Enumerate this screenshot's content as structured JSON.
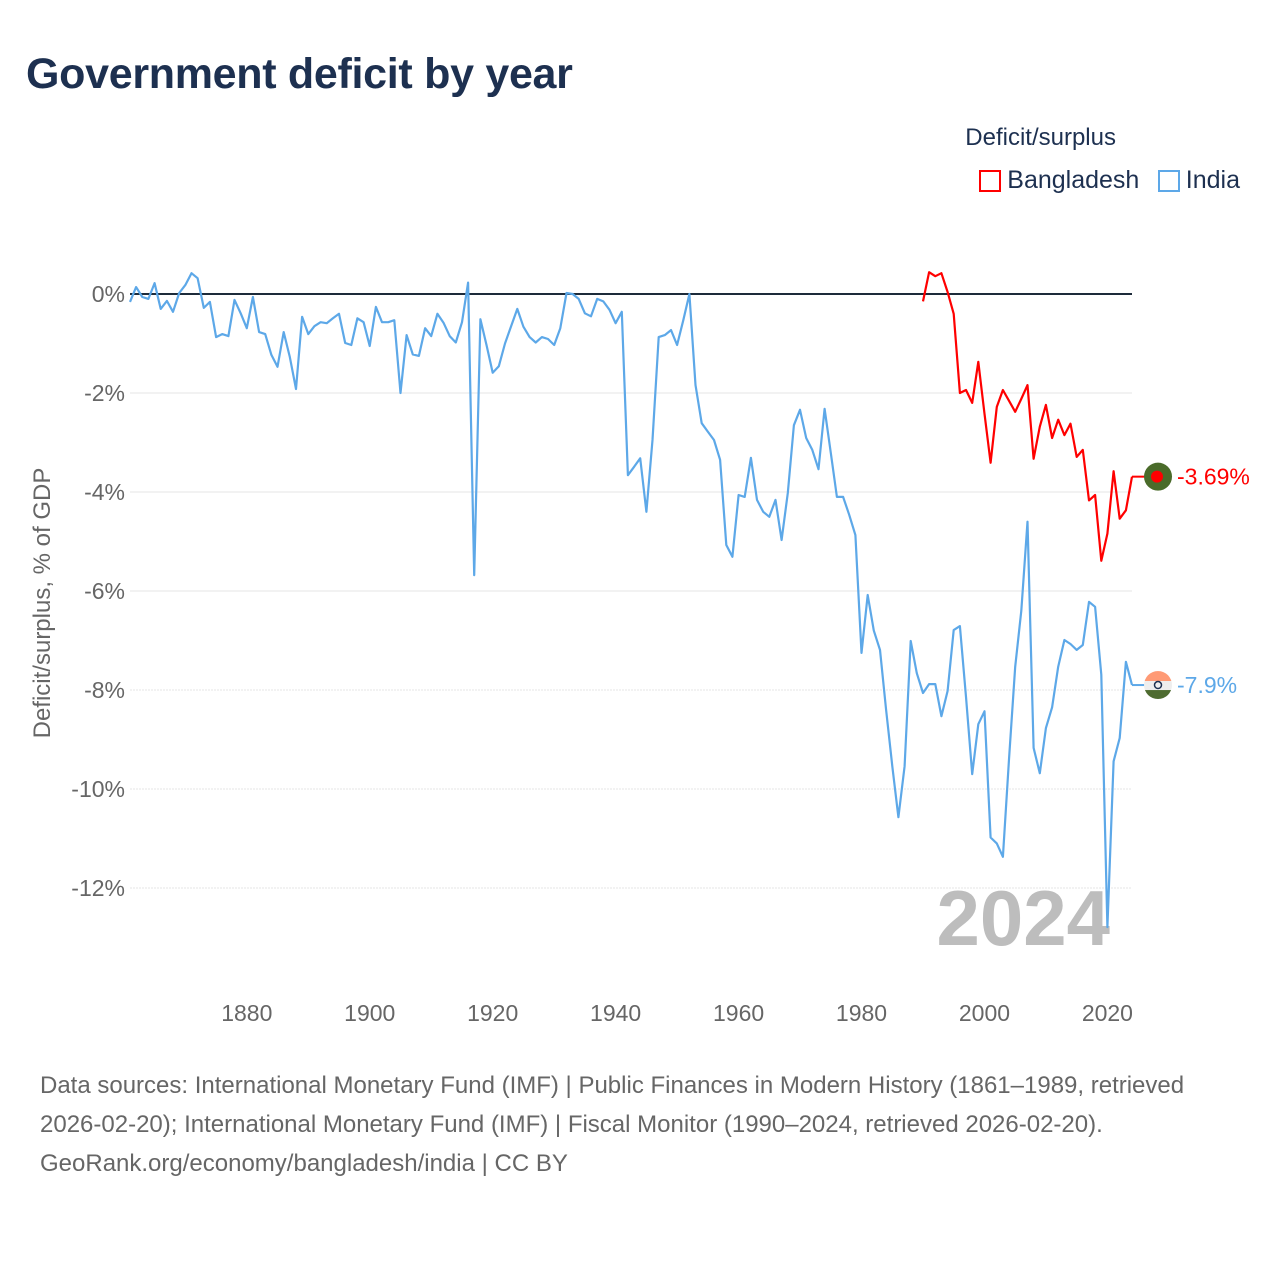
{
  "title": "Government deficit by year",
  "legend": {
    "title": "Deficit/surplus",
    "items": [
      {
        "label": "Bangladesh",
        "color": "#ff0000"
      },
      {
        "label": "India",
        "color": "#5da8e8"
      }
    ]
  },
  "footer": {
    "sources": "Data sources: International Monetary Fund (IMF) | Public Finances in Modern History (1861–1989, retrieved 2026-02-20); International Monetary Fund (IMF) | Fiscal Monitor (1990–2024, retrieved 2026-02-20).",
    "credit": "GeoRank.org/economy/bangladesh/india | CC BY"
  },
  "chart_data": {
    "type": "line",
    "title": "Government deficit by year",
    "xlabel": "",
    "ylabel": "Deficit/surplus, % of GDP",
    "xlim": [
      1861,
      2024
    ],
    "ylim": [
      -13,
      0.6
    ],
    "x_ticks": [
      1880,
      1900,
      1920,
      1940,
      1960,
      1980,
      2000,
      2020
    ],
    "y_ticks": [
      0,
      -2,
      -4,
      -6,
      -8,
      -10,
      -12
    ],
    "y_tick_labels": [
      "0%",
      "-2%",
      "-4%",
      "-6%",
      "-8%",
      "-10%",
      "-12%"
    ],
    "grid": true,
    "legend_position": "top-right",
    "year_watermark": "2024",
    "series": [
      {
        "name": "Bangladesh",
        "color": "#ff0000",
        "start_year": 1990,
        "end_label": "-3.69%",
        "flag": "bangladesh-flag",
        "values": [
          -0.15,
          0.44,
          0.36,
          0.42,
          0.04,
          -0.4,
          -2.0,
          -1.94,
          -2.2,
          -1.37,
          -2.42,
          -3.41,
          -2.28,
          -1.94,
          -2.16,
          -2.38,
          -2.12,
          -1.84,
          -3.33,
          -2.68,
          -2.24,
          -2.91,
          -2.54,
          -2.85,
          -2.62,
          -3.29,
          -3.15,
          -4.17,
          -4.06,
          -5.39,
          -4.84,
          -3.58,
          -4.54,
          -4.37,
          -3.69
        ]
      },
      {
        "name": "India",
        "color": "#5da8e8",
        "start_year": 1861,
        "end_label": "-7.9%",
        "flag": "india-flag",
        "values": [
          -0.16,
          0.14,
          -0.06,
          -0.1,
          0.22,
          -0.3,
          -0.14,
          -0.36,
          0.02,
          0.18,
          0.42,
          0.32,
          -0.28,
          -0.16,
          -0.87,
          -0.81,
          -0.85,
          -0.12,
          -0.39,
          -0.69,
          -0.06,
          -0.77,
          -0.81,
          -1.23,
          -1.47,
          -0.77,
          -1.27,
          -1.92,
          -0.46,
          -0.81,
          -0.65,
          -0.57,
          -0.59,
          -0.49,
          -0.4,
          -0.99,
          -1.03,
          -0.49,
          -0.57,
          -1.05,
          -0.26,
          -0.57,
          -0.57,
          -0.53,
          -2.0,
          -0.83,
          -1.22,
          -1.25,
          -0.69,
          -0.85,
          -0.4,
          -0.58,
          -0.85,
          -0.98,
          -0.57,
          0.23,
          -5.68,
          -0.51,
          -1.03,
          -1.59,
          -1.46,
          -1.0,
          -0.65,
          -0.3,
          -0.66,
          -0.87,
          -0.98,
          -0.87,
          -0.91,
          -1.03,
          -0.69,
          0.02,
          0,
          -0.1,
          -0.39,
          -0.45,
          -0.1,
          -0.15,
          -0.32,
          -0.59,
          -0.36,
          -3.66,
          -3.49,
          -3.32,
          -4.4,
          -2.95,
          -0.87,
          -0.83,
          -0.73,
          -1.03,
          -0.53,
          0,
          -1.84,
          -2.61,
          -2.78,
          -2.95,
          -3.35,
          -5.07,
          -5.31,
          -4.06,
          -4.1,
          -3.31,
          -4.16,
          -4.4,
          -4.5,
          -4.16,
          -4.97,
          -4.02,
          -2.65,
          -2.34,
          -2.91,
          -3.15,
          -3.54,
          -2.32,
          -3.21,
          -4.1,
          -4.1,
          -4.46,
          -4.87,
          -7.25,
          -6.08,
          -6.8,
          -7.19,
          -8.4,
          -9.54,
          -10.57,
          -9.54,
          -7.01,
          -7.66,
          -8.06,
          -7.88,
          -7.88,
          -8.53,
          -8.02,
          -6.79,
          -6.71,
          -8.14,
          -9.7,
          -8.69,
          -8.43,
          -10.98,
          -11.1,
          -11.37,
          -9.37,
          -7.53,
          -6.4,
          -4.6,
          -9.17,
          -9.68,
          -8.77,
          -8.35,
          -7.53,
          -6.99,
          -7.07,
          -7.19,
          -7.09,
          -6.22,
          -6.32,
          -7.69,
          -12.79,
          -9.44,
          -8.97,
          -7.43,
          -7.9
        ]
      }
    ]
  }
}
